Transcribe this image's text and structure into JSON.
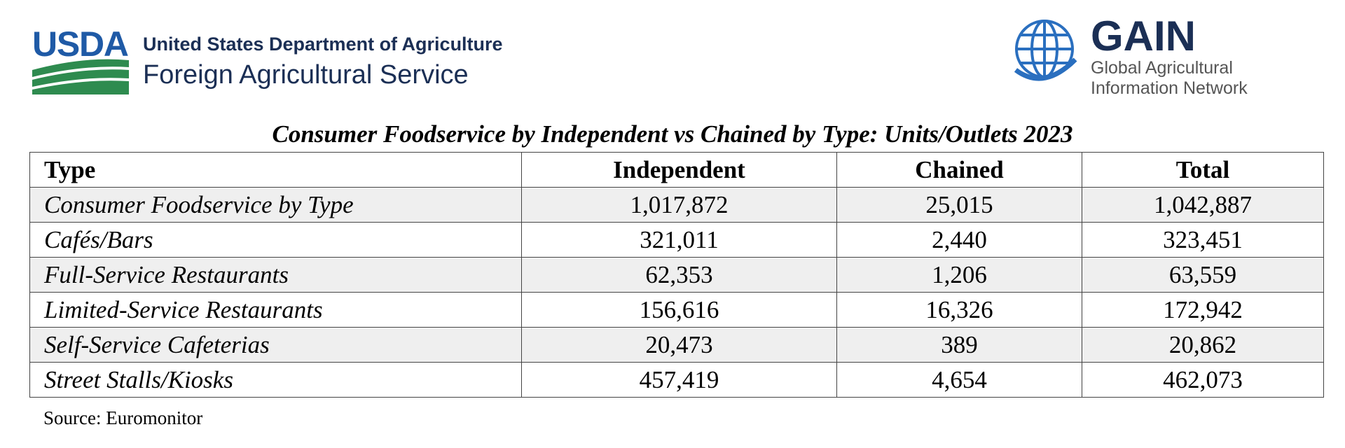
{
  "header": {
    "usda_logo": "USDA",
    "usda_line1": "United States Department of Agriculture",
    "usda_line2": "Foreign Agricultural Service",
    "gain_logo": "GAIN",
    "gain_line1": "Global Agricultural",
    "gain_line2": "Information Network"
  },
  "table": {
    "title": "Consumer Foodservice by Independent vs Chained by Type: Units/Outlets 2023",
    "columns": [
      "Type",
      "Independent",
      "Chained",
      "Total"
    ],
    "rows": [
      [
        "Consumer Foodservice by Type",
        "1,017,872",
        "25,015",
        "1,042,887"
      ],
      [
        "Cafés/Bars",
        "321,011",
        "2,440",
        "323,451"
      ],
      [
        "Full-Service Restaurants",
        "62,353",
        "1,206",
        "63,559"
      ],
      [
        "Limited-Service Restaurants",
        "156,616",
        "16,326",
        "172,942"
      ],
      [
        "Self-Service Cafeterias",
        "20,473",
        "389",
        "20,862"
      ],
      [
        "Street Stalls/Kiosks",
        "457,419",
        "4,654",
        "462,073"
      ]
    ]
  },
  "source": "Source:  Euromonitor"
}
